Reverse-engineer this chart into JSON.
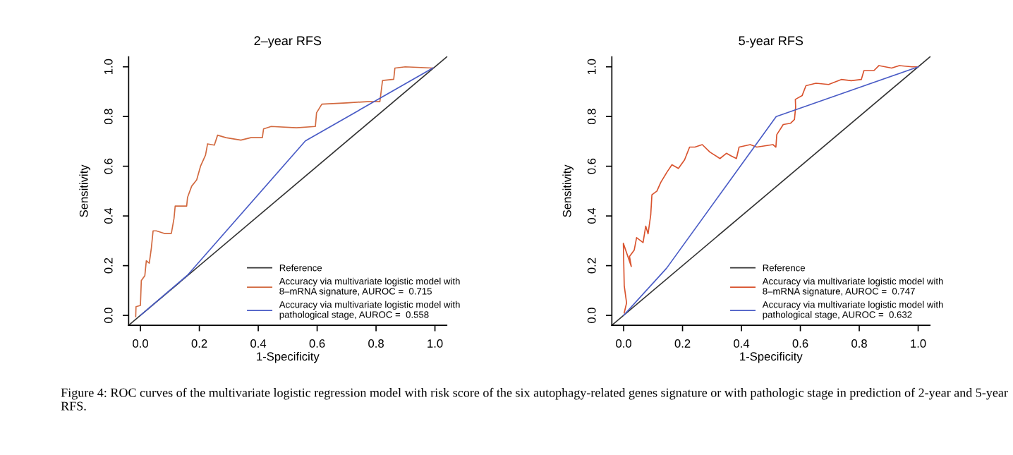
{
  "chart_data": [
    {
      "type": "line",
      "title": "2–year RFS",
      "xlabel": "1-Specificity",
      "ylabel": "Sensitivity",
      "xlim": [
        -0.04,
        1.04
      ],
      "ylim": [
        -0.04,
        1.04
      ],
      "xticks": [
        {
          "value": 0,
          "label": "0.0"
        },
        {
          "value": 0.2,
          "label": "0.2"
        },
        {
          "value": 0.4,
          "label": "0.4"
        },
        {
          "value": 0.6,
          "label": "0.6"
        },
        {
          "value": 0.8,
          "label": "0.8"
        },
        {
          "value": 1,
          "label": "1.0"
        }
      ],
      "yticks": [
        {
          "value": 0,
          "label": "0.0"
        },
        {
          "value": 0.2,
          "label": "0.2"
        },
        {
          "value": 0.4,
          "label": "0.4"
        },
        {
          "value": 0.6,
          "label": "0.6"
        },
        {
          "value": 0.8,
          "label": "0.8"
        },
        {
          "value": 1,
          "label": "1.0"
        }
      ],
      "legend": "bottom right",
      "series": [
        {
          "name": "Reference",
          "color": "#333333",
          "x": [
            -0.04,
            1.04
          ],
          "values": [
            -0.04,
            1.04
          ]
        },
        {
          "name": "Accuracy via multivariate logistic model with\n8–mRNA signature, AUROC =  0.715",
          "color": "#d2693f",
          "x": [
            -0.016,
            -0.015,
            0,
            0.003,
            0.015,
            0.02,
            0.03,
            0.037,
            0.043,
            0.054,
            0.08,
            0.105,
            0.114,
            0.118,
            0.14,
            0.157,
            0.16,
            0.174,
            0.191,
            0.204,
            0.221,
            0.228,
            0.251,
            0.262,
            0.29,
            0.341,
            0.375,
            0.414,
            0.418,
            0.444,
            0.53,
            0.594,
            0.598,
            0.616,
            0.7,
            0.77,
            0.813,
            0.822,
            0.86,
            0.864,
            0.899,
            0.993
          ],
          "values": [
            -0.005,
            0.035,
            0.04,
            0.14,
            0.16,
            0.22,
            0.21,
            0.27,
            0.34,
            0.34,
            0.33,
            0.33,
            0.39,
            0.44,
            0.44,
            0.44,
            0.475,
            0.52,
            0.545,
            0.6,
            0.645,
            0.69,
            0.685,
            0.725,
            0.715,
            0.705,
            0.715,
            0.715,
            0.75,
            0.76,
            0.755,
            0.76,
            0.815,
            0.85,
            0.855,
            0.86,
            0.86,
            0.945,
            0.95,
            0.995,
            1.0,
            0.995
          ]
        },
        {
          "name": "Accuracy via multivariate logistic model with\npathological stage, AUROC =  0.558",
          "color": "#4a5cc6",
          "x": [
            0,
            0.16,
            0.56,
            0.993
          ],
          "values": [
            0,
            0.162,
            0.702,
            0.995
          ]
        }
      ],
      "annotations": [
        "Figure 4: ROC curves of the multivariate logistic regression model with risk score of the six autophagy-related genes signature or with pathologic stage in prediction of 2-year and 5-year RFS."
      ]
    },
    {
      "type": "line",
      "title": "5-year RFS",
      "xlabel": "1-Specificity",
      "ylabel": "Sensitivity",
      "xlim": [
        -0.04,
        1.04
      ],
      "ylim": [
        -0.04,
        1.04
      ],
      "xticks": [
        {
          "value": 0,
          "label": "0.0"
        },
        {
          "value": 0.2,
          "label": "0.2"
        },
        {
          "value": 0.4,
          "label": "0.4"
        },
        {
          "value": 0.6,
          "label": "0.6"
        },
        {
          "value": 0.8,
          "label": "0.8"
        },
        {
          "value": 1,
          "label": "1.0"
        }
      ],
      "yticks": [
        {
          "value": 0,
          "label": "0.0"
        },
        {
          "value": 0.2,
          "label": "0.2"
        },
        {
          "value": 0.4,
          "label": "0.4"
        },
        {
          "value": 0.6,
          "label": "0.6"
        },
        {
          "value": 0.8,
          "label": "0.8"
        },
        {
          "value": 1,
          "label": "1.0"
        }
      ],
      "legend": "bottom right",
      "series": [
        {
          "name": "Reference",
          "color": "#333333",
          "x": [
            -0.04,
            1.04
          ],
          "values": [
            -0.04,
            1.04
          ]
        },
        {
          "name": "Accuracy via multivariate logistic model with\n8–mRNA signature, AUROC =  0.747",
          "color": "#d9532e",
          "x": [
            0.002,
            0.01,
            0.002,
            -0.001,
            0.026,
            0.02,
            0.036,
            0.044,
            0.066,
            0.075,
            0.083,
            0.092,
            0.096,
            0.113,
            0.126,
            0.147,
            0.164,
            0.186,
            0.207,
            0.224,
            0.242,
            0.267,
            0.293,
            0.327,
            0.349,
            0.366,
            0.383,
            0.392,
            0.43,
            0.452,
            0.507,
            0.517,
            0.52,
            0.542,
            0.567,
            0.58,
            0.584,
            0.583,
            0.606,
            0.619,
            0.653,
            0.696,
            0.739,
            0.773,
            0.807,
            0.816,
            0.85,
            0.867,
            0.91,
            0.936,
            0.979,
            1.0
          ],
          "values": [
            0.01,
            0.05,
            0.12,
            0.29,
            0.197,
            0.237,
            0.263,
            0.313,
            0.293,
            0.359,
            0.328,
            0.404,
            0.485,
            0.5,
            0.535,
            0.576,
            0.606,
            0.591,
            0.626,
            0.677,
            0.677,
            0.687,
            0.657,
            0.631,
            0.652,
            0.641,
            0.631,
            0.677,
            0.687,
            0.677,
            0.687,
            0.677,
            0.727,
            0.768,
            0.773,
            0.788,
            0.838,
            0.869,
            0.884,
            0.924,
            0.934,
            0.929,
            0.949,
            0.944,
            0.949,
            0.985,
            0.985,
            1.005,
            0.995,
            1.005,
            1.0,
            1.0
          ]
        },
        {
          "name": "Accuracy via multivariate logistic model with\npathological stage, AUROC =  0.632",
          "color": "#4a5cc6",
          "x": [
            0,
            0.146,
            0.518,
            1.0
          ],
          "values": [
            0,
            0.19,
            0.8,
            1.0
          ]
        }
      ]
    }
  ]
}
